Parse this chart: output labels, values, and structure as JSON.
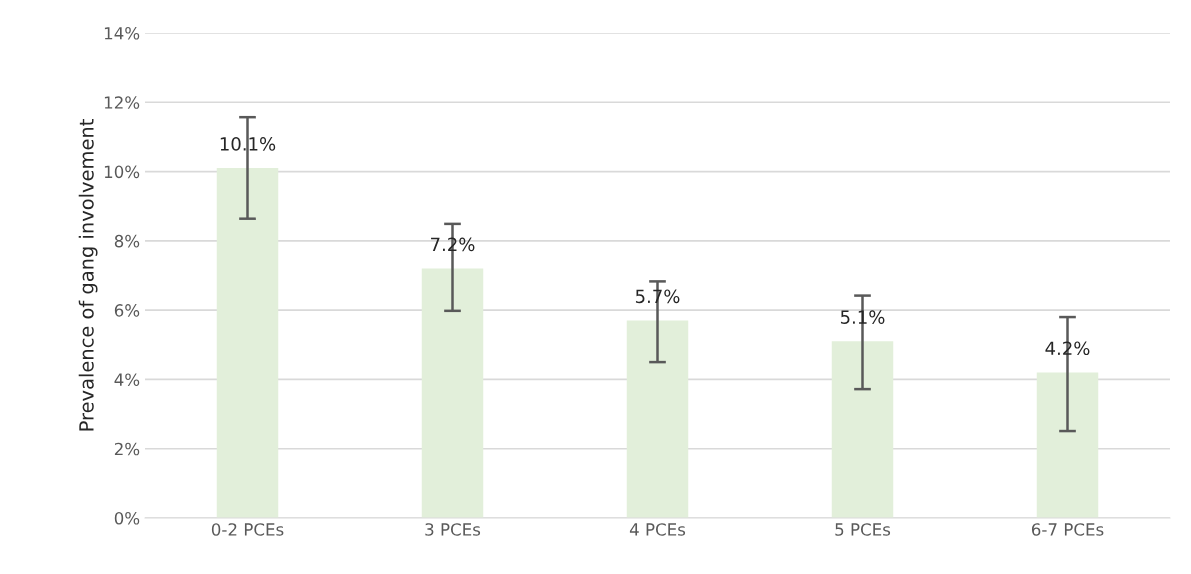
{
  "chart_data": {
    "type": "bar",
    "ylabel": "Prevalence of gang involvement",
    "categories": [
      "0-2 PCEs",
      "3 PCEs",
      "4 PCEs",
      "5 PCEs",
      "6-7 PCEs"
    ],
    "series": [
      {
        "color": "#e2efda",
        "values": [
          10.1,
          7.2,
          5.7,
          5.1,
          4.2
        ],
        "errors": [
          [
            8.64,
            11.57
          ],
          [
            5.98,
            8.49
          ],
          [
            4.5,
            6.83
          ],
          [
            3.72,
            6.42
          ],
          [
            2.51,
            5.8
          ]
        ],
        "value_labels": [
          "10.1%",
          "7.2%",
          "5.7%",
          "5.1%",
          "4.2%"
        ]
      }
    ],
    "ylim": [
      0,
      14
    ],
    "yticks": [
      {
        "value": 0,
        "label": "0%"
      },
      {
        "value": 2,
        "label": "2%"
      },
      {
        "value": 4,
        "label": "4%"
      },
      {
        "value": 6,
        "label": "6%"
      },
      {
        "value": 8,
        "label": "8%"
      },
      {
        "value": 10,
        "label": "10%"
      },
      {
        "value": 12,
        "label": "12%"
      },
      {
        "value": 14,
        "label": "14%"
      }
    ],
    "grid": "y"
  }
}
